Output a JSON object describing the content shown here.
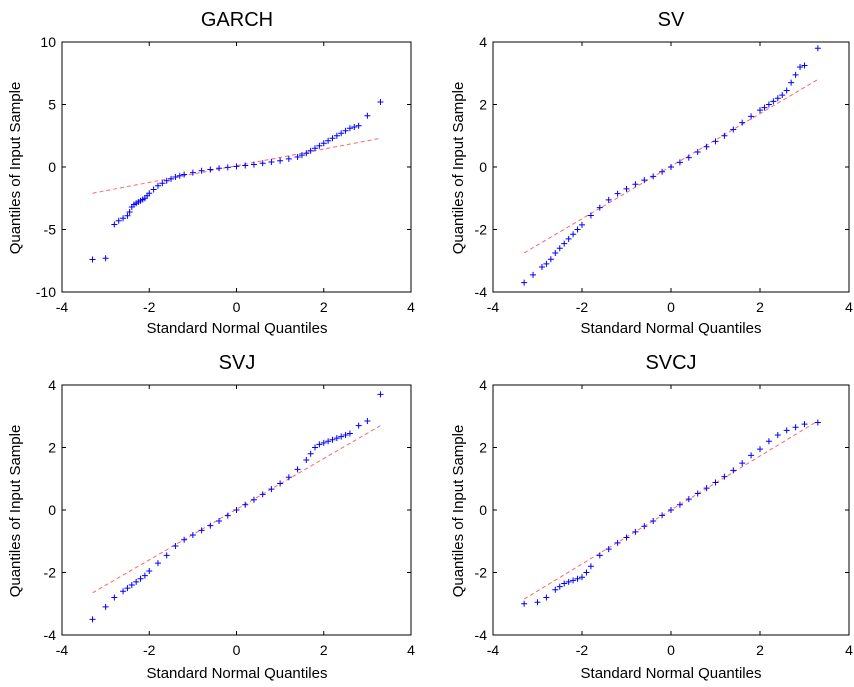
{
  "chart_data": [
    {
      "type": "scatter",
      "title": "GARCH",
      "xlabel": "Standard Normal Quantiles",
      "ylabel": "Quantiles of Input Sample",
      "xlim": [
        -4,
        4
      ],
      "ylim": [
        -10,
        10
      ],
      "xticks": [
        -4,
        -2,
        0,
        2,
        4
      ],
      "yticks": [
        -10,
        -5,
        0,
        5,
        10
      ],
      "marker": "+",
      "marker_color": "#0000ff",
      "reference_line": {
        "color": "#ff6666",
        "style": "dashed",
        "x": [
          -3.3,
          3.3
        ],
        "y": [
          -2.1,
          2.3
        ]
      },
      "points": {
        "x": [
          -3.3,
          -3.0,
          -2.8,
          -2.7,
          -2.6,
          -2.5,
          -2.45,
          -2.4,
          -2.35,
          -2.3,
          -2.25,
          -2.2,
          -2.15,
          -2.1,
          -2.05,
          -2.0,
          -1.9,
          -1.8,
          -1.7,
          -1.6,
          -1.5,
          -1.4,
          -1.3,
          -1.2,
          -1.0,
          -0.8,
          -0.6,
          -0.4,
          -0.2,
          0.0,
          0.2,
          0.4,
          0.6,
          0.8,
          1.0,
          1.2,
          1.4,
          1.5,
          1.6,
          1.7,
          1.8,
          1.9,
          2.0,
          2.1,
          2.2,
          2.3,
          2.4,
          2.5,
          2.6,
          2.7,
          2.8,
          3.0,
          3.3
        ],
        "y": [
          -7.4,
          -7.3,
          -4.6,
          -4.3,
          -4.1,
          -3.9,
          -3.6,
          -3.2,
          -3.0,
          -2.9,
          -2.8,
          -2.7,
          -2.6,
          -2.5,
          -2.3,
          -2.1,
          -1.8,
          -1.5,
          -1.3,
          -1.1,
          -0.95,
          -0.8,
          -0.7,
          -0.6,
          -0.45,
          -0.3,
          -0.2,
          -0.1,
          -0.03,
          0.05,
          0.12,
          0.2,
          0.3,
          0.4,
          0.5,
          0.65,
          0.8,
          0.95,
          1.1,
          1.3,
          1.5,
          1.7,
          1.9,
          2.1,
          2.3,
          2.5,
          2.7,
          2.9,
          3.1,
          3.2,
          3.3,
          4.1,
          5.2
        ]
      }
    },
    {
      "type": "scatter",
      "title": "SV",
      "xlabel": "Standard Normal Quantiles",
      "ylabel": "Quantiles of Input Sample",
      "xlim": [
        -4,
        4
      ],
      "ylim": [
        -4,
        4
      ],
      "xticks": [
        -4,
        -2,
        0,
        2,
        4
      ],
      "yticks": [
        -4,
        -2,
        0,
        2,
        4
      ],
      "marker": "+",
      "marker_color": "#0000ff",
      "reference_line": {
        "color": "#ff6666",
        "style": "dashed",
        "x": [
          -3.3,
          3.3
        ],
        "y": [
          -2.75,
          2.8
        ]
      },
      "points": {
        "x": [
          -3.3,
          -3.1,
          -2.9,
          -2.8,
          -2.7,
          -2.6,
          -2.5,
          -2.4,
          -2.3,
          -2.2,
          -2.1,
          -2.0,
          -1.8,
          -1.6,
          -1.4,
          -1.2,
          -1.0,
          -0.8,
          -0.6,
          -0.4,
          -0.2,
          0.0,
          0.2,
          0.4,
          0.6,
          0.8,
          1.0,
          1.2,
          1.4,
          1.6,
          1.8,
          2.0,
          2.1,
          2.2,
          2.3,
          2.4,
          2.5,
          2.6,
          2.7,
          2.8,
          2.9,
          3.0,
          3.3
        ],
        "y": [
          -3.7,
          -3.45,
          -3.2,
          -3.1,
          -2.95,
          -2.75,
          -2.6,
          -2.45,
          -2.3,
          -2.15,
          -2.0,
          -1.85,
          -1.55,
          -1.3,
          -1.05,
          -0.85,
          -0.7,
          -0.55,
          -0.42,
          -0.3,
          -0.15,
          0.0,
          0.15,
          0.3,
          0.48,
          0.65,
          0.82,
          1.0,
          1.2,
          1.42,
          1.62,
          1.82,
          1.9,
          2.0,
          2.1,
          2.2,
          2.3,
          2.45,
          2.7,
          2.95,
          3.2,
          3.25,
          3.8
        ]
      }
    },
    {
      "type": "scatter",
      "title": "SVJ",
      "xlabel": "Standard Normal Quantiles",
      "ylabel": "Quantiles of Input Sample",
      "xlim": [
        -4,
        4
      ],
      "ylim": [
        -4,
        4
      ],
      "xticks": [
        -4,
        -2,
        0,
        2,
        4
      ],
      "yticks": [
        -4,
        -2,
        0,
        2,
        4
      ],
      "marker": "+",
      "marker_color": "#0000ff",
      "reference_line": {
        "color": "#ff6666",
        "style": "dashed",
        "x": [
          -3.3,
          3.3
        ],
        "y": [
          -2.65,
          2.7
        ]
      },
      "points": {
        "x": [
          -3.3,
          -3.0,
          -2.8,
          -2.6,
          -2.5,
          -2.4,
          -2.3,
          -2.2,
          -2.1,
          -2.0,
          -1.8,
          -1.6,
          -1.4,
          -1.2,
          -1.0,
          -0.8,
          -0.6,
          -0.4,
          -0.2,
          0.0,
          0.2,
          0.4,
          0.6,
          0.8,
          1.0,
          1.2,
          1.4,
          1.6,
          1.7,
          1.8,
          1.9,
          2.0,
          2.1,
          2.2,
          2.3,
          2.4,
          2.5,
          2.6,
          2.8,
          3.0,
          3.3
        ],
        "y": [
          -3.5,
          -3.1,
          -2.8,
          -2.6,
          -2.5,
          -2.4,
          -2.3,
          -2.2,
          -2.1,
          -1.95,
          -1.7,
          -1.45,
          -1.15,
          -0.95,
          -0.8,
          -0.65,
          -0.5,
          -0.35,
          -0.18,
          0.0,
          0.17,
          0.33,
          0.5,
          0.67,
          0.85,
          1.05,
          1.3,
          1.6,
          1.8,
          2.0,
          2.1,
          2.15,
          2.2,
          2.25,
          2.3,
          2.35,
          2.4,
          2.45,
          2.7,
          2.85,
          3.7
        ]
      }
    },
    {
      "type": "scatter",
      "title": "SVCJ",
      "xlabel": "Standard Normal Quantiles",
      "ylabel": "Quantiles of Input Sample",
      "xlim": [
        -4,
        4
      ],
      "ylim": [
        -4,
        4
      ],
      "xticks": [
        -4,
        -2,
        0,
        2,
        4
      ],
      "yticks": [
        -4,
        -2,
        0,
        2,
        4
      ],
      "marker": "+",
      "marker_color": "#0000ff",
      "reference_line": {
        "color": "#ff6666",
        "style": "dashed",
        "x": [
          -3.3,
          3.3
        ],
        "y": [
          -2.85,
          2.85
        ]
      },
      "points": {
        "x": [
          -3.3,
          -3.0,
          -2.8,
          -2.6,
          -2.5,
          -2.4,
          -2.3,
          -2.2,
          -2.1,
          -2.0,
          -1.9,
          -1.8,
          -1.6,
          -1.4,
          -1.2,
          -1.0,
          -0.8,
          -0.6,
          -0.4,
          -0.2,
          0.0,
          0.2,
          0.4,
          0.6,
          0.8,
          1.0,
          1.2,
          1.4,
          1.6,
          1.8,
          2.0,
          2.2,
          2.4,
          2.6,
          2.8,
          3.0,
          3.3
        ],
        "y": [
          -3.0,
          -2.95,
          -2.8,
          -2.55,
          -2.45,
          -2.35,
          -2.3,
          -2.25,
          -2.2,
          -2.15,
          -2.0,
          -1.8,
          -1.45,
          -1.25,
          -1.05,
          -0.88,
          -0.7,
          -0.52,
          -0.35,
          -0.17,
          0.0,
          0.17,
          0.35,
          0.53,
          0.7,
          0.88,
          1.07,
          1.27,
          1.5,
          1.75,
          1.95,
          2.2,
          2.4,
          2.55,
          2.65,
          2.75,
          2.8
        ]
      }
    }
  ]
}
